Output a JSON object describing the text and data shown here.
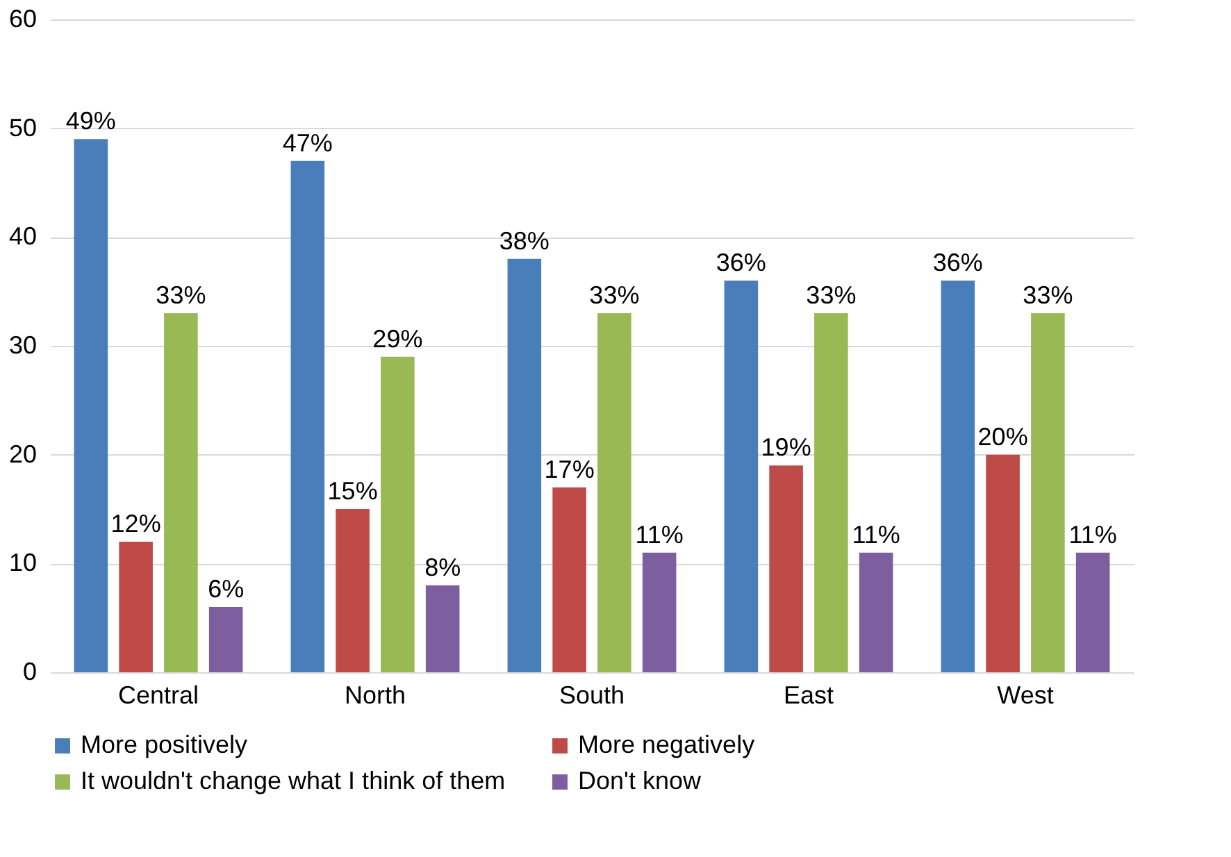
{
  "chart_data": {
    "type": "bar",
    "categories": [
      "Central",
      "North",
      "South",
      "East",
      "West"
    ],
    "series": [
      {
        "name": "More positively",
        "color": "#4a7ebb",
        "values": [
          49,
          47,
          38,
          36,
          36
        ],
        "value_labels": [
          "49%",
          "47%",
          "38%",
          "36%",
          "36%"
        ]
      },
      {
        "name": "More negatively",
        "color": "#be4b48",
        "values": [
          12,
          15,
          17,
          19,
          20
        ],
        "value_labels": [
          "12%",
          "15%",
          "17%",
          "19%",
          "20%"
        ]
      },
      {
        "name": "It wouldn't change what I think of them",
        "color": "#98b954",
        "values": [
          33,
          29,
          33,
          33,
          33
        ],
        "value_labels": [
          "33%",
          "29%",
          "33%",
          "33%",
          "33%"
        ]
      },
      {
        "name": "Don't know",
        "color": "#7d5fa0",
        "values": [
          6,
          8,
          11,
          11,
          11
        ],
        "value_labels": [
          "6%",
          "8%",
          "11%",
          "11%",
          "11%"
        ]
      }
    ],
    "ylim": [
      0,
      60
    ],
    "yticks": [
      0,
      10,
      20,
      30,
      40,
      50,
      60
    ],
    "grid": "y",
    "legend": "bottom"
  }
}
